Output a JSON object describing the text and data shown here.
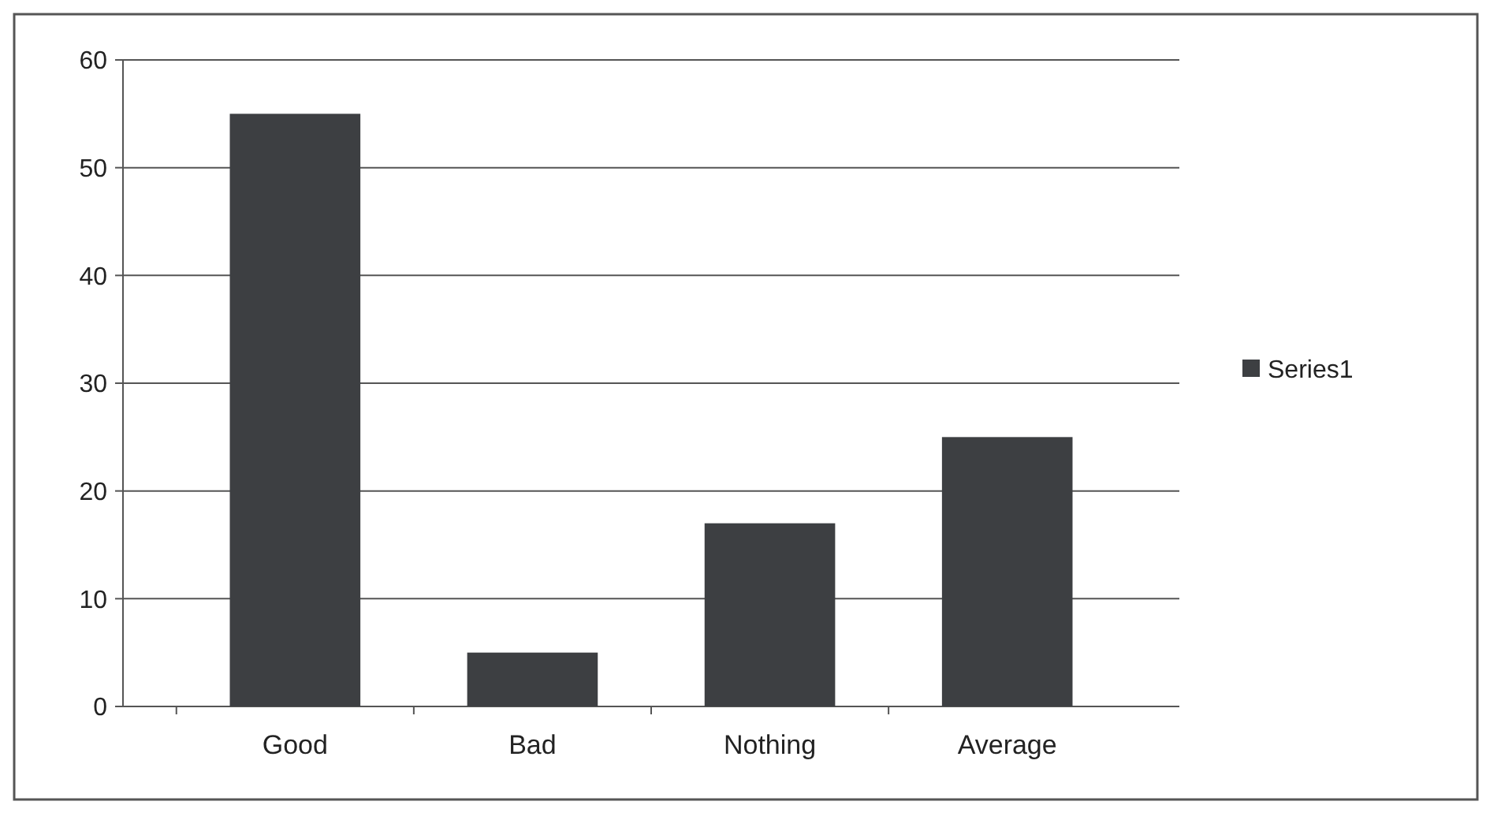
{
  "chart_data": {
    "type": "bar",
    "categories": [
      "Good",
      "Bad",
      "Nothing",
      "Average"
    ],
    "series": [
      {
        "name": "Series1",
        "color": "#3d3f42",
        "values": [
          55,
          5,
          17,
          25
        ]
      }
    ],
    "ylim": [
      0,
      60
    ],
    "yticks": [
      0,
      10,
      20,
      30,
      40,
      50,
      60
    ],
    "grid": "y",
    "legend": "right"
  }
}
